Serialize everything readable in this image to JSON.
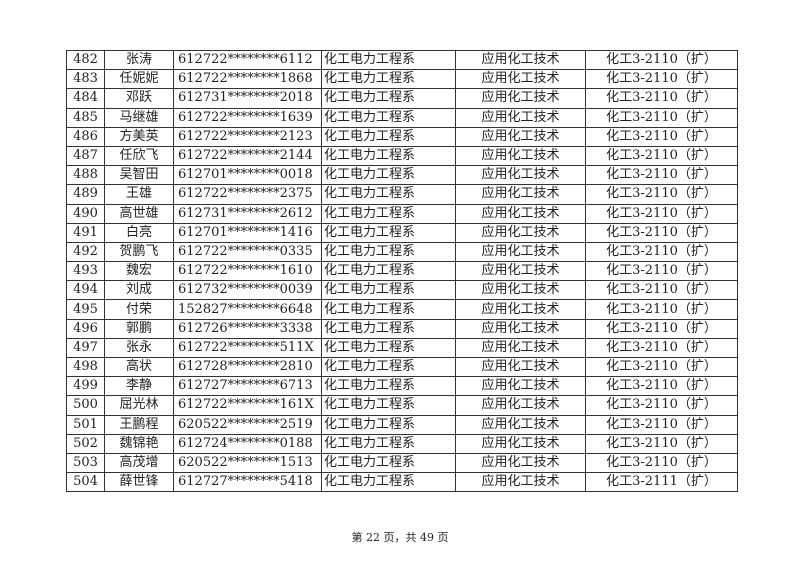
{
  "rows": [
    [
      "482",
      "张涛",
      "612722********6112",
      "化工电力工程系",
      "应用化工技术",
      "化工3-2110（扩）"
    ],
    [
      "483",
      "任妮妮",
      "612722********1868",
      "化工电力工程系",
      "应用化工技术",
      "化工3-2110（扩）"
    ],
    [
      "484",
      "邓跃",
      "612731********2018",
      "化工电力工程系",
      "应用化工技术",
      "化工3-2110（扩）"
    ],
    [
      "485",
      "马继雄",
      "612722********1639",
      "化工电力工程系",
      "应用化工技术",
      "化工3-2110（扩）"
    ],
    [
      "486",
      "方美英",
      "612722********2123",
      "化工电力工程系",
      "应用化工技术",
      "化工3-2110（扩）"
    ],
    [
      "487",
      "任欣飞",
      "612722********2144",
      "化工电力工程系",
      "应用化工技术",
      "化工3-2110（扩）"
    ],
    [
      "488",
      "吴智田",
      "612701********0018",
      "化工电力工程系",
      "应用化工技术",
      "化工3-2110（扩）"
    ],
    [
      "489",
      "王雄",
      "612722********2375",
      "化工电力工程系",
      "应用化工技术",
      "化工3-2110（扩）"
    ],
    [
      "490",
      "高世雄",
      "612731********2612",
      "化工电力工程系",
      "应用化工技术",
      "化工3-2110（扩）"
    ],
    [
      "491",
      "白亮",
      "612701********1416",
      "化工电力工程系",
      "应用化工技术",
      "化工3-2110（扩）"
    ],
    [
      "492",
      "贺鹏飞",
      "612722********0335",
      "化工电力工程系",
      "应用化工技术",
      "化工3-2110（扩）"
    ],
    [
      "493",
      "魏宏",
      "612722********1610",
      "化工电力工程系",
      "应用化工技术",
      "化工3-2110（扩）"
    ],
    [
      "494",
      "刘成",
      "612732********0039",
      "化工电力工程系",
      "应用化工技术",
      "化工3-2110（扩）"
    ],
    [
      "495",
      "付荣",
      "152827********6648",
      "化工电力工程系",
      "应用化工技术",
      "化工3-2110（扩）"
    ],
    [
      "496",
      "郭鹏",
      "612726********3338",
      "化工电力工程系",
      "应用化工技术",
      "化工3-2110（扩）"
    ],
    [
      "497",
      "张永",
      "612722********511X",
      "化工电力工程系",
      "应用化工技术",
      "化工3-2110（扩）"
    ],
    [
      "498",
      "高状",
      "612728********2810",
      "化工电力工程系",
      "应用化工技术",
      "化工3-2110（扩）"
    ],
    [
      "499",
      "李静",
      "612727********6713",
      "化工电力工程系",
      "应用化工技术",
      "化工3-2110（扩）"
    ],
    [
      "500",
      "屈光林",
      "612722********161X",
      "化工电力工程系",
      "应用化工技术",
      "化工3-2110（扩）"
    ],
    [
      "501",
      "王鹏程",
      "620522********2519",
      "化工电力工程系",
      "应用化工技术",
      "化工3-2110（扩）"
    ],
    [
      "502",
      "魏锦艳",
      "612724********0188",
      "化工电力工程系",
      "应用化工技术",
      "化工3-2110（扩）"
    ],
    [
      "503",
      "高茂增",
      "620522********1513",
      "化工电力工程系",
      "应用化工技术",
      "化工3-2110（扩）"
    ],
    [
      "504",
      "薛世锋",
      "612727********5418",
      "化工电力工程系",
      "应用化工技术",
      "化工3-2111（扩）"
    ]
  ],
  "footer": "第 22 页，共 49 页"
}
